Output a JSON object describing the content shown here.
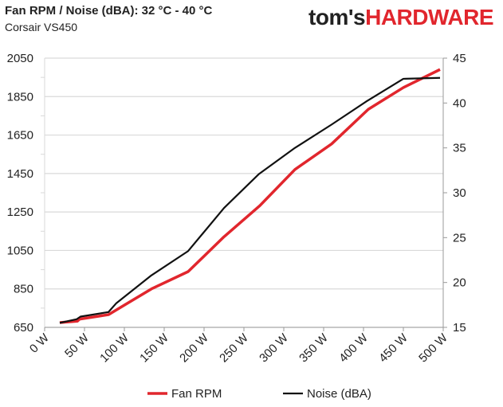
{
  "header": {
    "title": "Fan RPM / Noise (dBA): 32 °C - 40 °C",
    "subtitle": "Corsair VS450",
    "logo": "tom's HARDWARE",
    "logo_part1": "tom's",
    "logo_part2": "HARDWARE"
  },
  "chart_data": {
    "type": "line",
    "title": "Fan RPM / Noise (dBA): 32 °C - 40 °C",
    "subtitle": "Corsair VS450",
    "xlim": [
      0,
      500
    ],
    "x_ticks": [
      0,
      50,
      100,
      150,
      200,
      250,
      300,
      350,
      400,
      450,
      500
    ],
    "x_tick_labels": [
      "0 W",
      "50 W",
      "100 W",
      "150 W",
      "200 W",
      "250 W",
      "300 W",
      "350 W",
      "400 W",
      "450 W",
      "500 W"
    ],
    "ylim_left": [
      650,
      2050
    ],
    "y_left_ticks": [
      650,
      850,
      1050,
      1250,
      1450,
      1650,
      1850,
      2050
    ],
    "ylim_right": [
      15,
      45
    ],
    "y_right_ticks": [
      15,
      20,
      25,
      30,
      35,
      40,
      45
    ],
    "grid": true,
    "legend_placement": "bottom",
    "series": [
      {
        "name": "Fan RPM",
        "axis": "left",
        "color": "#e1262d",
        "x": [
          19,
          41,
          44,
          80,
          134,
          180,
          225,
          270,
          314,
          360,
          406,
          450,
          496
        ],
        "y": [
          675,
          682,
          693,
          716,
          850,
          940,
          1121,
          1283,
          1471,
          1604,
          1784,
          1897,
          1991
        ]
      },
      {
        "name": "Noise (dBA)",
        "axis": "right",
        "color": "#111111",
        "x": [
          19,
          40,
          45,
          80,
          90,
          134,
          180,
          225,
          269,
          314,
          360,
          404,
          450,
          496
        ],
        "y": [
          15.5,
          15.9,
          16.2,
          16.7,
          17.7,
          20.8,
          23.5,
          28.3,
          32.1,
          35.0,
          37.6,
          40.2,
          42.7,
          42.8
        ]
      }
    ]
  }
}
